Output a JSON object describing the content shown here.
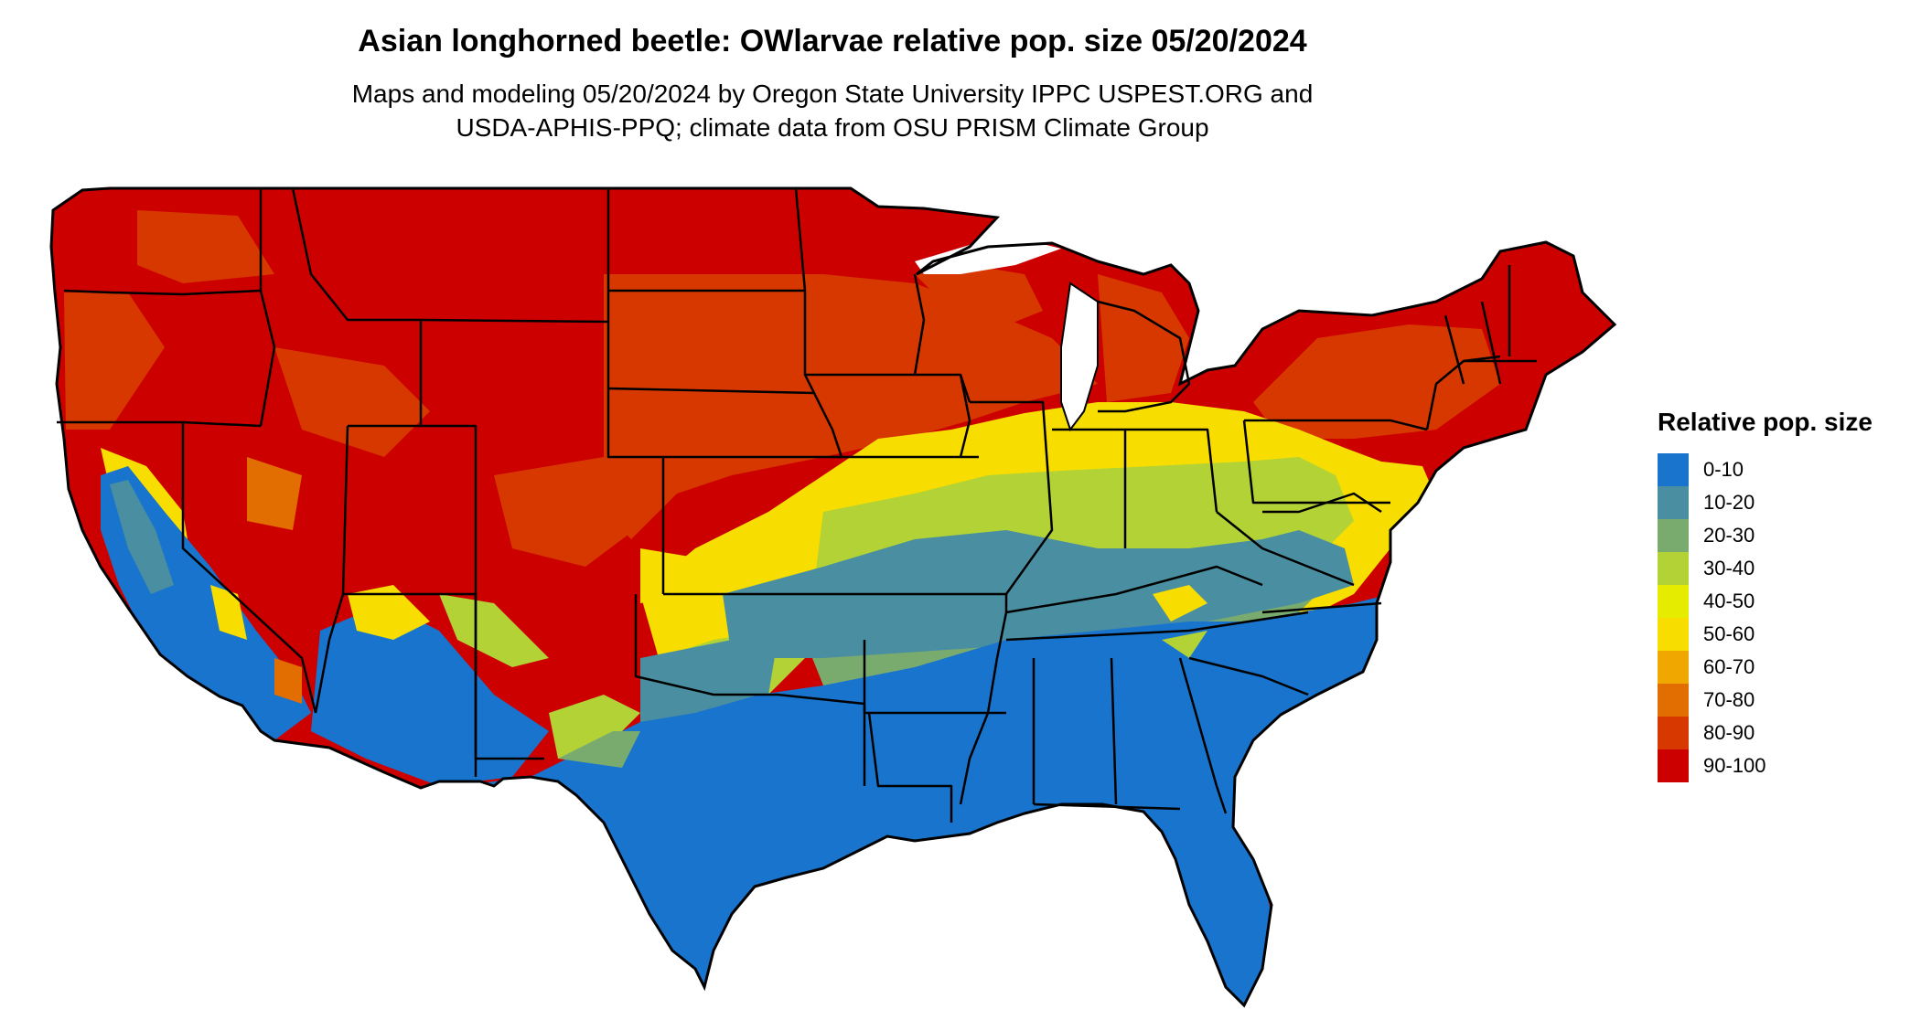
{
  "header": {
    "title": "Asian longhorned beetle: OWlarvae relative pop. size 05/20/2024",
    "subtitle_line1": "Maps and modeling 05/20/2024 by Oregon State University IPPC USPEST.ORG and",
    "subtitle_line2": "USDA-APHIS-PPQ; climate data from OSU PRISM Climate Group"
  },
  "legend": {
    "title": "Relative pop. size",
    "items": [
      {
        "label": "0-10",
        "color": "#1874cd"
      },
      {
        "label": "10-20",
        "color": "#4a8fa1"
      },
      {
        "label": "20-30",
        "color": "#7aab6e"
      },
      {
        "label": "30-40",
        "color": "#b2d235"
      },
      {
        "label": "40-50",
        "color": "#e6ec00"
      },
      {
        "label": "50-60",
        "color": "#f7de00"
      },
      {
        "label": "60-70",
        "color": "#f0a800"
      },
      {
        "label": "70-80",
        "color": "#e26d00"
      },
      {
        "label": "80-90",
        "color": "#d73800"
      },
      {
        "label": "90-100",
        "color": "#cd0000"
      }
    ]
  }
}
